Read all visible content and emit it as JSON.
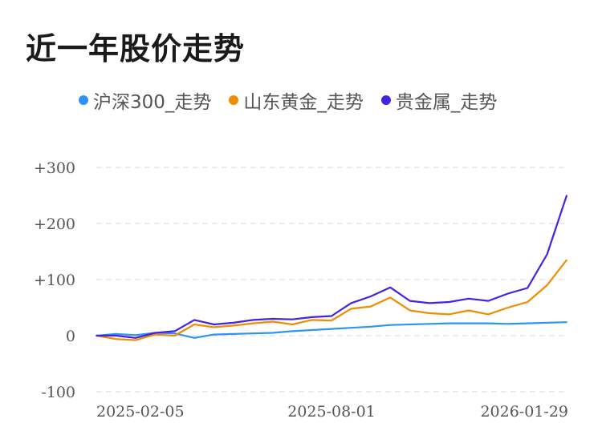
{
  "page": {
    "title": "近一年股价走势"
  },
  "chart_data": {
    "type": "line",
    "title": "近一年股价走势",
    "xlabel": "",
    "ylabel": "",
    "ylim": [
      -100,
      300
    ],
    "yticks": [
      {
        "value": 300,
        "label": "+300"
      },
      {
        "value": 200,
        "label": "+200"
      },
      {
        "value": 100,
        "label": "+100"
      },
      {
        "value": 0,
        "label": "0"
      },
      {
        "value": -100,
        "label": "-100"
      }
    ],
    "xticks": [
      {
        "index": 0,
        "label": "2025-02-05"
      },
      {
        "index": 12,
        "label": "2025-08-01"
      },
      {
        "index": 24,
        "label": "2026-01-29"
      }
    ],
    "grid": true,
    "legend_position": "top",
    "series": [
      {
        "name": "沪深300_走势",
        "color": "#2e93f2",
        "values": [
          0,
          3,
          1,
          5,
          4,
          -4,
          2,
          3,
          4,
          5,
          8,
          10,
          12,
          14,
          16,
          19,
          20,
          21,
          22,
          22,
          22,
          21,
          22,
          23,
          24
        ]
      },
      {
        "name": "山东黄金_走势",
        "color": "#f08c00",
        "values": [
          0,
          -6,
          -8,
          2,
          0,
          20,
          15,
          18,
          22,
          25,
          20,
          28,
          27,
          48,
          52,
          68,
          45,
          40,
          38,
          45,
          38,
          50,
          60,
          90,
          135
        ]
      },
      {
        "name": "贵金属_走势",
        "color": "#4422e0",
        "values": [
          0,
          0,
          -4,
          5,
          8,
          28,
          20,
          23,
          28,
          30,
          29,
          33,
          35,
          58,
          70,
          86,
          62,
          58,
          60,
          66,
          62,
          75,
          85,
          145,
          250
        ]
      }
    ]
  }
}
